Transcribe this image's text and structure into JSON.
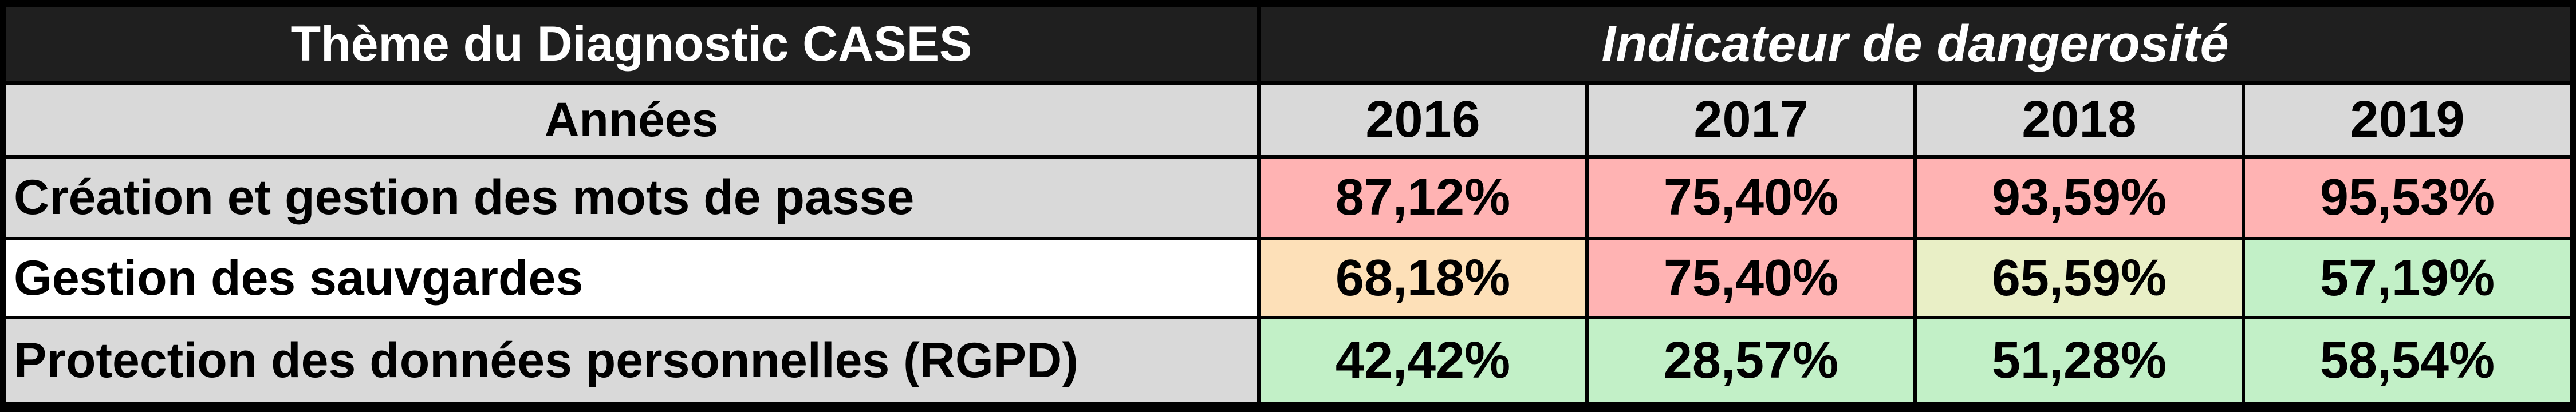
{
  "header": {
    "theme_title": "Thème du Diagnostic CASES",
    "indicator_title": "Indicateur de dangerosité"
  },
  "years_row": {
    "label": "Années",
    "years": [
      "2016",
      "2017",
      "2018",
      "2019"
    ]
  },
  "rows": [
    {
      "label": "Création et gestion des mots de passe",
      "values": [
        "87,12%",
        "75,40%",
        "93,59%",
        "95,53%"
      ],
      "colors": [
        "#ffb3b3",
        "#ffb3b3",
        "#ffb3b3",
        "#ffb3b3"
      ]
    },
    {
      "label": "Gestion des sauvgardes",
      "values": [
        "68,18%",
        "75,40%",
        "65,59%",
        "57,19%"
      ],
      "colors": [
        "#fde0b8",
        "#ffb3b3",
        "#e9efc6",
        "#c2f0c7"
      ]
    },
    {
      "label": "Protection des données personnelles (RGPD)",
      "values": [
        "42,42%",
        "28,57%",
        "51,28%",
        "58,54%"
      ],
      "colors": [
        "#c2f0c7",
        "#c2f0c7",
        "#c2f0c7",
        "#c2f0c7"
      ]
    }
  ],
  "colors": {
    "header_bg": "#1f1f1f",
    "header_text": "#ffffff",
    "grey_bg": "#d9d9d9",
    "border": "#000000"
  }
}
